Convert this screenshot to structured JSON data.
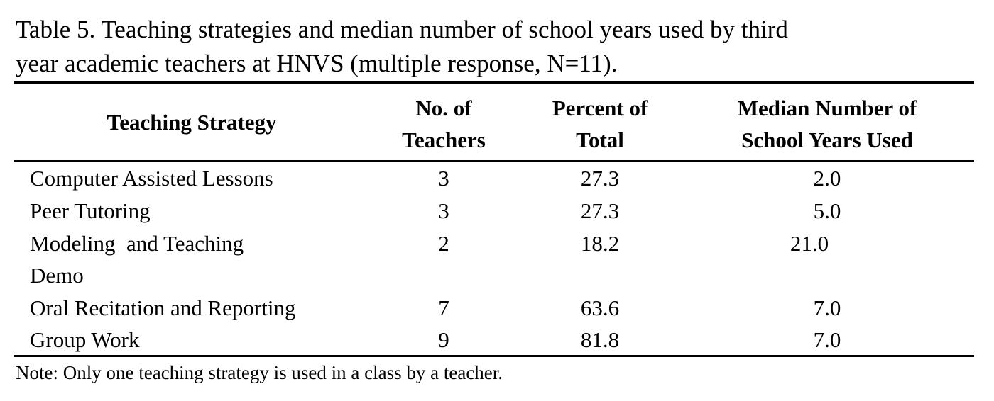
{
  "caption": {
    "line1": "Table 5. Teaching strategies and median number of school years used by third",
    "line2": "year academic teachers at HNVS (multiple response, N=11)."
  },
  "headers": {
    "strategy": "Teaching Strategy",
    "teachers_1": "No. of",
    "teachers_2": "Teachers",
    "percent_1": "Percent of",
    "percent_2": "Total",
    "median_1": "Median Number of",
    "median_2": "School Years Used"
  },
  "rows": [
    {
      "strategy": "Computer Assisted Lessons",
      "teachers": "3",
      "percent": "27.3",
      "median": "2.0"
    },
    {
      "strategy": "Peer Tutoring",
      "teachers": "3",
      "percent": "27.3",
      "median": "5.0"
    },
    {
      "strategy": "Modeling  and Teaching",
      "strategy_cont": "Demo",
      "teachers": "2",
      "percent": "18.2",
      "median": "21.0"
    },
    {
      "strategy": "Oral Recitation and Reporting",
      "teachers": "7",
      "percent": "63.6",
      "median": "7.0"
    },
    {
      "strategy": "Group Work",
      "teachers": "9",
      "percent": "81.8",
      "median": "7.0"
    }
  ],
  "note": "Note: Only one teaching strategy is used in a class by a teacher."
}
